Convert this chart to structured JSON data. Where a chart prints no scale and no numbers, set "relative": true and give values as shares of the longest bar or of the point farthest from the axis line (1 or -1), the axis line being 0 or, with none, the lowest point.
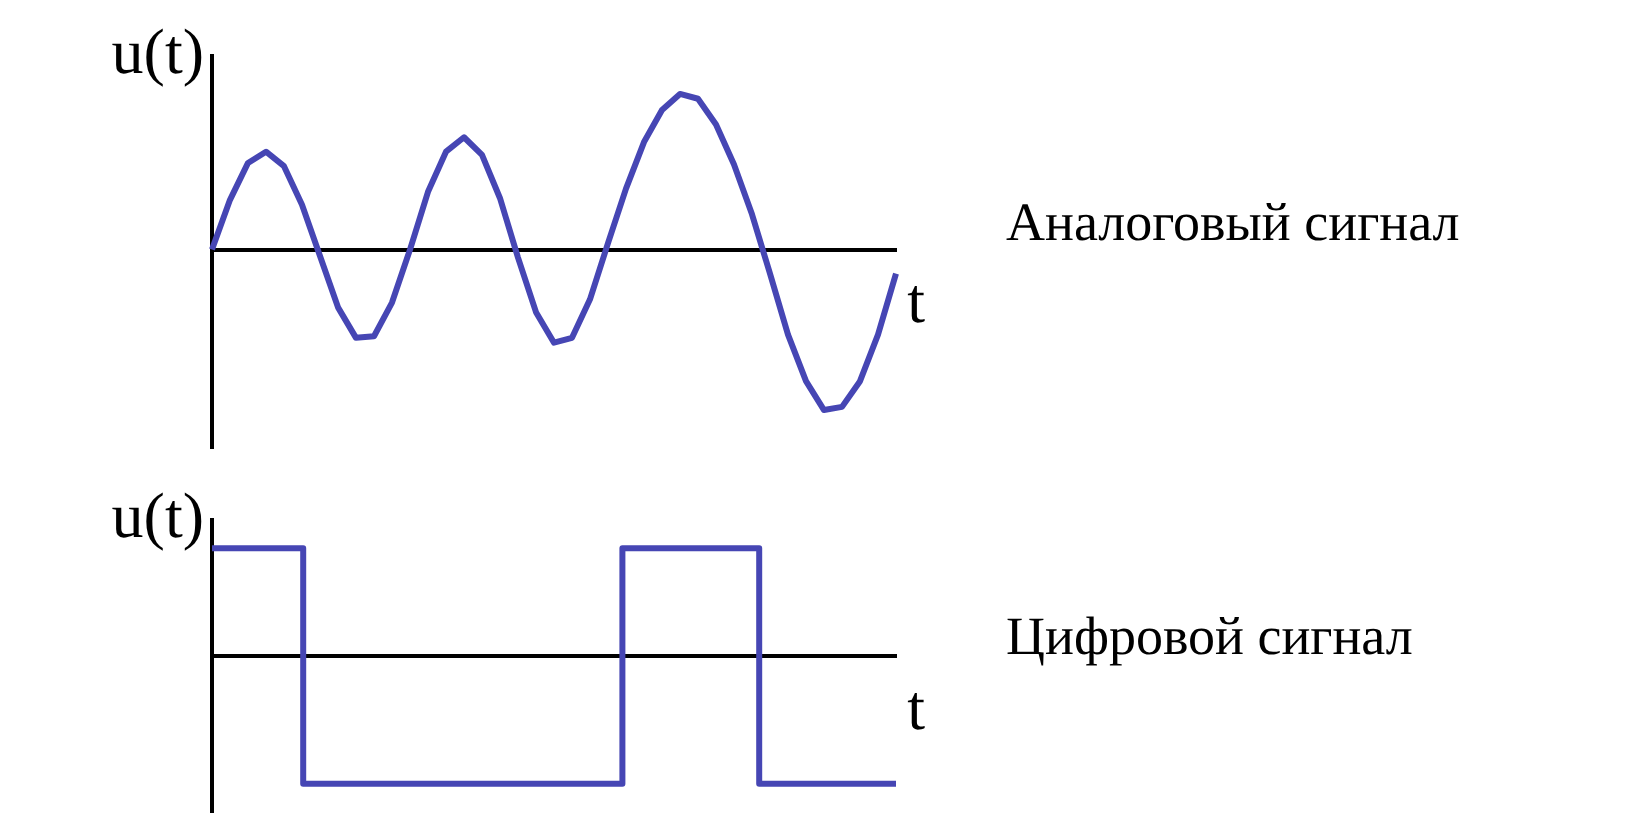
{
  "chart_data": [
    {
      "type": "line",
      "ylabel": "u(t)",
      "xlabel": "t",
      "annotations": [
        "Аналоговый сигнал"
      ],
      "relative": true,
      "categories": [
        null,
        null,
        null,
        null,
        null,
        null,
        null,
        null,
        null,
        null,
        null,
        null,
        null,
        null,
        null,
        null,
        null,
        null,
        null,
        null,
        null,
        null,
        null,
        null,
        null,
        null,
        null,
        null,
        null,
        null,
        null,
        null,
        null,
        null,
        null,
        null,
        null,
        null,
        null
      ],
      "series": [
        {
          "color": "#4646b4",
          "values": [
            0,
            0.31,
            0.54,
            0.61,
            0.52,
            0.28,
            -0.04,
            -0.36,
            -0.55,
            -0.54,
            -0.33,
            0,
            0.36,
            0.61,
            0.7,
            0.59,
            0.32,
            -0.05,
            -0.39,
            -0.58,
            -0.55,
            -0.31,
            0.04,
            0.38,
            0.67,
            0.87,
            0.97,
            0.94,
            0.78,
            0.53,
            0.22,
            -0.15,
            -0.53,
            -0.82,
            -1,
            -0.98,
            -0.82,
            -0.53,
            -0.15
          ]
        }
      ]
    },
    {
      "type": "step",
      "ylabel": "u(t)",
      "xlabel": "t",
      "annotations": [
        "Цифровой сигнал"
      ],
      "relative": true,
      "categories": [
        null,
        null,
        null,
        null,
        null,
        null,
        null,
        null,
        null,
        null,
        null,
        null,
        null,
        null,
        null,
        null
      ],
      "series": [
        {
          "color": "#4646b4",
          "values": [
            0.85,
            0.85,
            0.85,
            -1,
            -1,
            -1,
            -1,
            -1,
            -1,
            -1,
            0.85,
            0.85,
            0.85,
            -1,
            -1,
            -1
          ]
        }
      ]
    }
  ]
}
